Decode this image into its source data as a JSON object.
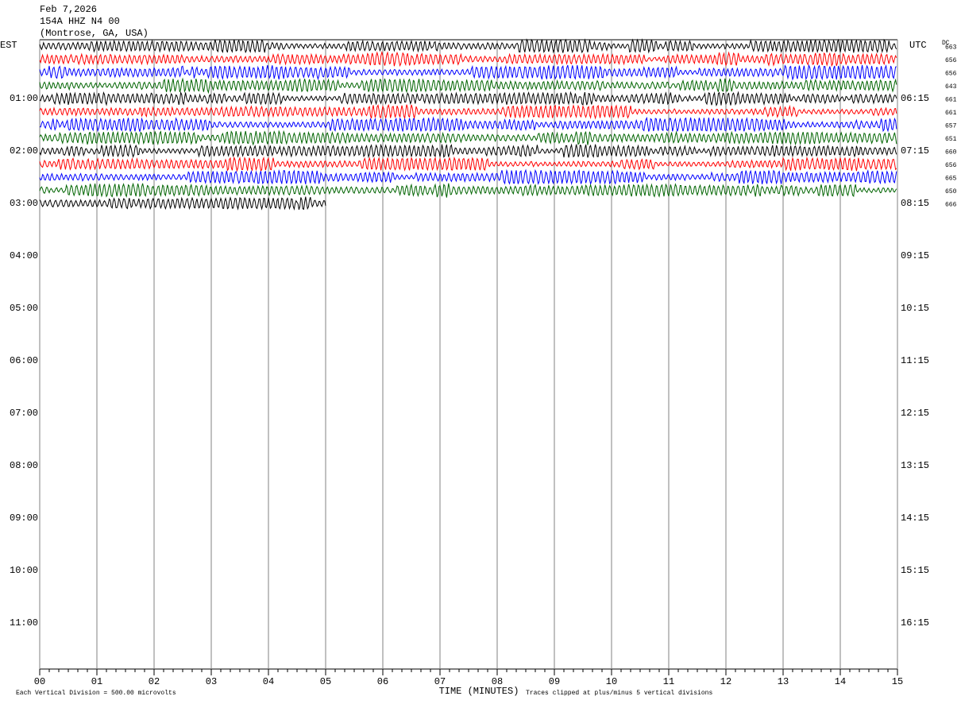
{
  "chart_data": {
    "type": "helicorder",
    "title_lines": [
      "Feb 7,2026",
      "154A HHZ N4 00",
      "(Montrose, GA, USA)"
    ],
    "left_timezone": "EST",
    "right_timezone": "UTC",
    "dc_heading": "DC",
    "left_hour_labels": [
      "01:00",
      "02:00",
      "03:00",
      "04:00",
      "05:00",
      "06:00",
      "07:00",
      "08:00",
      "09:00",
      "10:00",
      "11:00"
    ],
    "right_hour_labels": [
      "06:15",
      "07:15",
      "08:15",
      "09:15",
      "10:15",
      "11:15",
      "12:15",
      "13:15",
      "14:15",
      "15:15",
      "16:15"
    ],
    "xlabel": "TIME (MINUTES)",
    "xlim": [
      0,
      15
    ],
    "xticks": [
      {
        "value": 0,
        "label": "00"
      },
      {
        "value": 1,
        "label": "01"
      },
      {
        "value": 2,
        "label": "02"
      },
      {
        "value": 3,
        "label": "03"
      },
      {
        "value": 4,
        "label": "04"
      },
      {
        "value": 5,
        "label": "05"
      },
      {
        "value": 6,
        "label": "06"
      },
      {
        "value": 7,
        "label": "07"
      },
      {
        "value": 8,
        "label": "08"
      },
      {
        "value": 9,
        "label": "09"
      },
      {
        "value": 10,
        "label": "10"
      },
      {
        "value": 11,
        "label": "11"
      },
      {
        "value": 12,
        "label": "12"
      },
      {
        "value": 13,
        "label": "13"
      },
      {
        "value": 14,
        "label": "14"
      },
      {
        "value": 15,
        "label": "15"
      }
    ],
    "trace_colors": [
      "#000000",
      "#ff0000",
      "#0000ff",
      "#006400"
    ],
    "dc_offsets": [
      663,
      656,
      656,
      643,
      661,
      661,
      657,
      651,
      660,
      656,
      665,
      650,
      666
    ],
    "last_trace_end_minute": 5,
    "footnote_left": "Each Vertical Division =  500.00 microvolts",
    "footnote_right": "Traces clipped at plus/minus 5 vertical divisions"
  }
}
